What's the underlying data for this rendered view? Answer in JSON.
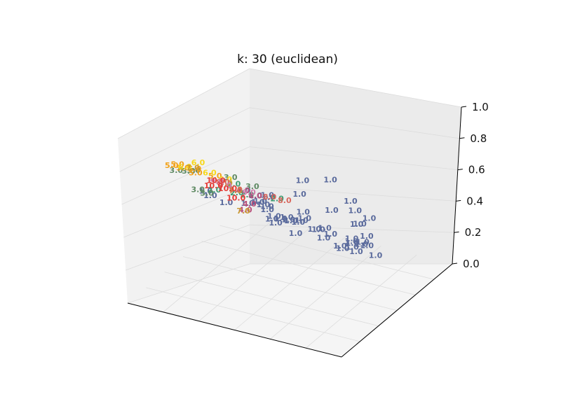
{
  "chart_data": {
    "type": "scatter",
    "projection": "3d",
    "title": "k: 30 (euclidean)",
    "xlabel": "",
    "ylabel": "",
    "zlabel": "",
    "x_ticks": [],
    "y_ticks": [],
    "z_ticks": [
      "0.0",
      "0.2",
      "0.4",
      "0.6",
      "0.8",
      "1.0"
    ],
    "zlim": [
      0,
      1
    ],
    "grid": true,
    "legend": "none",
    "point_marker": "text label",
    "category_colors": {
      "1.0": "#5a6a9c",
      "2.0": "#3d9a70",
      "3.0": "#5f8a63",
      "4.0": "#b84f7a",
      "5.0": "#f2a21a",
      "6.0": "#f7d81a",
      "7.0": "#c99a33",
      "8.0": "#d9675d",
      "9.0": "#d07aa8",
      "10.0": "#e53b35"
    },
    "points": [
      {
        "label": "1.0",
        "x": 0.87,
        "y": 0.15,
        "z": 0.98
      },
      {
        "label": "1.0",
        "x": 0.74,
        "y": 0.15,
        "z": 0.93
      },
      {
        "label": "1.0",
        "x": 0.98,
        "y": 0.12,
        "z": 0.9
      },
      {
        "label": "1.0",
        "x": 0.97,
        "y": 0.18,
        "z": 0.8
      },
      {
        "label": "1.0",
        "x": 1.0,
        "y": 0.25,
        "z": 0.72
      },
      {
        "label": "1.0",
        "x": 0.7,
        "y": 0.2,
        "z": 0.8
      },
      {
        "label": "1.0",
        "x": 0.85,
        "y": 0.2,
        "z": 0.75
      },
      {
        "label": "1.0",
        "x": 0.45,
        "y": 0.18,
        "z": 0.75
      },
      {
        "label": "1.0",
        "x": 0.93,
        "y": 0.3,
        "z": 0.63
      },
      {
        "label": "1.0",
        "x": 0.9,
        "y": 0.33,
        "z": 0.6
      },
      {
        "label": "1.0",
        "x": 0.52,
        "y": 0.22,
        "z": 0.66
      },
      {
        "label": "1.0",
        "x": 0.9,
        "y": 0.42,
        "z": 0.47
      },
      {
        "label": "1.0",
        "x": 0.83,
        "y": 0.42,
        "z": 0.43
      },
      {
        "label": "1.0",
        "x": 0.85,
        "y": 0.48,
        "z": 0.38
      },
      {
        "label": "1.0",
        "x": 0.86,
        "y": 0.5,
        "z": 0.35
      },
      {
        "label": "1.0",
        "x": 0.9,
        "y": 0.5,
        "z": 0.3
      },
      {
        "label": "1.0",
        "x": 0.62,
        "y": 0.4,
        "z": 0.5
      },
      {
        "label": "1.0",
        "x": 0.58,
        "y": 0.42,
        "z": 0.45
      },
      {
        "label": "1.0",
        "x": 0.7,
        "y": 0.48,
        "z": 0.38
      },
      {
        "label": "1.0",
        "x": 0.78,
        "y": 0.52,
        "z": 0.3
      },
      {
        "label": "1.0",
        "x": 0.75,
        "y": 0.58,
        "z": 0.28
      },
      {
        "label": "1.0",
        "x": 0.72,
        "y": 0.63,
        "z": 0.25
      },
      {
        "label": "1.0",
        "x": 0.6,
        "y": 0.62,
        "z": 0.3
      },
      {
        "label": "1.0",
        "x": 0.55,
        "y": 0.66,
        "z": 0.25
      },
      {
        "label": "1.0",
        "x": 0.63,
        "y": 0.7,
        "z": 0.15
      },
      {
        "label": "1.0",
        "x": 0.68,
        "y": 0.75,
        "z": 0.1
      },
      {
        "label": "1.0",
        "x": 0.72,
        "y": 0.72,
        "z": 0.18
      },
      {
        "label": "1.0",
        "x": 0.5,
        "y": 0.72,
        "z": 0.2
      },
      {
        "label": "1.0",
        "x": 0.45,
        "y": 0.7,
        "z": 0.25
      },
      {
        "label": "1.0",
        "x": 0.4,
        "y": 0.68,
        "z": 0.25
      },
      {
        "label": "1.0",
        "x": 0.38,
        "y": 0.74,
        "z": 0.2
      },
      {
        "label": "1.0",
        "x": 0.3,
        "y": 0.8,
        "z": 0.15
      },
      {
        "label": "1.0",
        "x": 0.25,
        "y": 0.82,
        "z": 0.12
      },
      {
        "label": "1.0",
        "x": 0.35,
        "y": 0.84,
        "z": 0.05
      },
      {
        "label": "1.0",
        "x": 0.45,
        "y": 0.9,
        "z": 0.02
      },
      {
        "label": "1.0",
        "x": 0.55,
        "y": 0.88,
        "z": 0.0
      },
      {
        "label": "1.0",
        "x": 0.2,
        "y": 0.95,
        "z": 0.0
      },
      {
        "label": "1.0",
        "x": 0.15,
        "y": 0.6,
        "z": 0.32
      },
      {
        "label": "1.0",
        "x": 0.08,
        "y": 0.55,
        "z": 0.4
      },
      {
        "label": "1.0",
        "x": 0.05,
        "y": 0.65,
        "z": 0.3
      },
      {
        "label": "1.0",
        "x": 0.25,
        "y": 0.6,
        "z": 0.35
      },
      {
        "label": "1.0",
        "x": 0.32,
        "y": 0.58,
        "z": 0.4
      },
      {
        "label": "1.0",
        "x": 0.35,
        "y": 0.5,
        "z": 0.45
      },
      {
        "label": "1.0",
        "x": 0.4,
        "y": 0.55,
        "z": 0.35
      },
      {
        "label": "1.0",
        "x": 0.3,
        "y": 0.68,
        "z": 0.3
      },
      {
        "label": "1.0",
        "x": 0.28,
        "y": 0.72,
        "z": 0.25
      },
      {
        "label": "1.0",
        "x": 0.35,
        "y": 0.76,
        "z": 0.2
      },
      {
        "label": "1.0",
        "x": 0.42,
        "y": 0.45,
        "z": 0.55
      },
      {
        "label": "1.0",
        "x": 0.38,
        "y": 0.42,
        "z": 0.55
      },
      {
        "label": "1.0",
        "x": 0.4,
        "y": 0.5,
        "z": 0.5
      },
      {
        "label": "1.0",
        "x": 0.52,
        "y": 0.58,
        "z": 0.4
      },
      {
        "label": "2.0",
        "x": 0.3,
        "y": 0.38,
        "z": 0.62
      },
      {
        "label": "2.0",
        "x": 0.3,
        "y": 0.5,
        "z": 0.48
      },
      {
        "label": "2.0",
        "x": 0.45,
        "y": 0.48,
        "z": 0.52
      },
      {
        "label": "2.0",
        "x": 0.12,
        "y": 0.55,
        "z": 0.42
      },
      {
        "label": "2.0",
        "x": 0.2,
        "y": 0.6,
        "z": 0.4
      },
      {
        "label": "3.0",
        "x": 0.3,
        "y": 0.35,
        "z": 0.68
      },
      {
        "label": "3.0",
        "x": 0.35,
        "y": 0.45,
        "z": 0.58
      },
      {
        "label": "3.0",
        "x": 0.05,
        "y": 0.5,
        "z": 0.55
      },
      {
        "label": "3.0",
        "x": 0.02,
        "y": 0.4,
        "z": 0.6
      },
      {
        "label": "3.0",
        "x": 0.06,
        "y": 0.6,
        "z": 0.35
      },
      {
        "label": "3.0",
        "x": 0.08,
        "y": 0.48,
        "z": 0.45
      },
      {
        "label": "3.0",
        "x": 0.0,
        "y": 0.55,
        "z": 0.5
      },
      {
        "label": "4.0",
        "x": 0.28,
        "y": 0.5,
        "z": 0.5
      },
      {
        "label": "4.0",
        "x": 0.4,
        "y": 0.38,
        "z": 0.58
      },
      {
        "label": "4.0",
        "x": 0.28,
        "y": 0.56,
        "z": 0.38
      },
      {
        "label": "4.0",
        "x": 0.25,
        "y": 0.58,
        "z": 0.32
      },
      {
        "label": "5.0",
        "x": 0.05,
        "y": 0.3,
        "z": 0.7
      },
      {
        "label": "5.0",
        "x": 0.0,
        "y": 0.45,
        "z": 0.6
      },
      {
        "label": "5.0",
        "x": 0.08,
        "y": 0.45,
        "z": 0.6
      },
      {
        "label": "5.0",
        "x": 0.1,
        "y": 0.42,
        "z": 0.6
      },
      {
        "label": "5.0",
        "x": 0.15,
        "y": 0.5,
        "z": 0.55
      },
      {
        "label": "5.0",
        "x": 0.0,
        "y": 0.5,
        "z": 0.55
      },
      {
        "label": "6.0",
        "x": 0.2,
        "y": 0.25,
        "z": 0.8
      },
      {
        "label": "6.0",
        "x": 0.25,
        "y": 0.4,
        "z": 0.62
      },
      {
        "label": "6.0",
        "x": 0.05,
        "y": 0.42,
        "z": 0.62
      },
      {
        "label": "6.0",
        "x": 0.15,
        "y": 0.45,
        "z": 0.6
      },
      {
        "label": "7.0",
        "x": 0.15,
        "y": 0.3,
        "z": 0.72
      },
      {
        "label": "7.0",
        "x": 0.2,
        "y": 0.5,
        "z": 0.52
      },
      {
        "label": "7.0",
        "x": 0.22,
        "y": 0.55,
        "z": 0.45
      },
      {
        "label": "7.0",
        "x": 0.22,
        "y": 0.62,
        "z": 0.28
      },
      {
        "label": "8.0",
        "x": 0.55,
        "y": 0.22,
        "z": 0.72
      },
      {
        "label": "8.0",
        "x": 0.62,
        "y": 0.22,
        "z": 0.72
      },
      {
        "label": "8.0",
        "x": 0.28,
        "y": 0.32,
        "z": 0.66
      },
      {
        "label": "8.0",
        "x": 0.35,
        "y": 0.3,
        "z": 0.65
      },
      {
        "label": "9.0",
        "x": 0.3,
        "y": 0.3,
        "z": 0.66
      },
      {
        "label": "9.0",
        "x": 0.35,
        "y": 0.42,
        "z": 0.56
      },
      {
        "label": "9.0",
        "x": 0.2,
        "y": 0.42,
        "z": 0.58
      },
      {
        "label": "10.0",
        "x": 0.22,
        "y": 0.35,
        "z": 0.6
      },
      {
        "label": "10.0",
        "x": 0.25,
        "y": 0.42,
        "z": 0.55
      },
      {
        "label": "10.0",
        "x": 0.18,
        "y": 0.45,
        "z": 0.56
      },
      {
        "label": "10.0",
        "x": 0.3,
        "y": 0.4,
        "z": 0.52
      }
    ]
  }
}
